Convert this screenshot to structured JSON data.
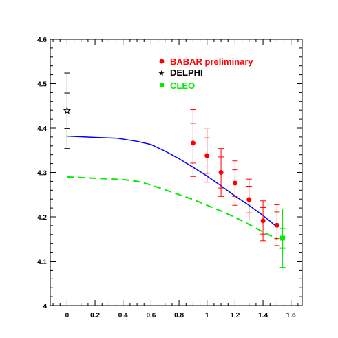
{
  "chart_data": {
    "type": "scatter",
    "title": "",
    "xlabel": "",
    "ylabel": "",
    "xlim": [
      -0.12,
      1.68
    ],
    "ylim": [
      4.0,
      4.6
    ],
    "x_ticks": [
      0,
      0.2,
      0.4,
      0.6,
      0.8,
      1,
      1.2,
      1.4,
      1.6
    ],
    "x_tick_labels": [
      "0",
      "0.2",
      "0.4",
      "0.6",
      "0.8",
      "1",
      "1.2",
      "1.4",
      "1.6"
    ],
    "y_ticks": [
      4.0,
      4.1,
      4.2,
      4.3,
      4.4,
      4.5,
      4.6
    ],
    "y_tick_labels": [
      "4",
      "4.1",
      "4.2",
      "4.3",
      "4.4",
      "4.5",
      "4.6"
    ],
    "grid": false,
    "legend_position": "top-right",
    "series": [
      {
        "name": "BABAR preliminary",
        "color": "#ff0000",
        "marker": "circle",
        "points": [
          {
            "x": 0.9,
            "y": 4.366,
            "err_stat": 0.045,
            "err_tot": 0.075
          },
          {
            "x": 1.0,
            "y": 4.338,
            "err_stat": 0.04,
            "err_tot": 0.06
          },
          {
            "x": 1.1,
            "y": 4.3,
            "err_stat": 0.035,
            "err_tot": 0.054
          },
          {
            "x": 1.2,
            "y": 4.276,
            "err_stat": 0.03,
            "err_tot": 0.05
          },
          {
            "x": 1.3,
            "y": 4.239,
            "err_stat": 0.03,
            "err_tot": 0.046
          },
          {
            "x": 1.4,
            "y": 4.191,
            "err_stat": 0.03,
            "err_tot": 0.045
          },
          {
            "x": 1.5,
            "y": 4.181,
            "err_stat": 0.03,
            "err_tot": 0.046
          }
        ]
      },
      {
        "name": "DELPHI",
        "color": "#000000",
        "marker": "star",
        "points": [
          {
            "x": 0.0,
            "y": 4.439,
            "err_stat": 0.04,
            "err_tot": 0.085
          }
        ]
      },
      {
        "name": "CLEO",
        "color": "#00ee00",
        "marker": "square",
        "points": [
          {
            "x": 1.54,
            "y": 4.152,
            "err_stat": 0.022,
            "err_tot": 0.066
          }
        ]
      }
    ],
    "curves": [
      {
        "color": "#0000ff",
        "style": "solid",
        "x": [
          0.0,
          0.2,
          0.36,
          0.5,
          0.6,
          0.7,
          0.8,
          0.9,
          1.0,
          1.1,
          1.2,
          1.3,
          1.4,
          1.5
        ],
        "y": [
          4.382,
          4.379,
          4.377,
          4.37,
          4.363,
          4.348,
          4.331,
          4.312,
          4.292,
          4.27,
          4.247,
          4.226,
          4.203,
          4.177
        ]
      },
      {
        "color": "#00ee00",
        "style": "dashed",
        "x": [
          0.0,
          0.2,
          0.4,
          0.5,
          0.6,
          0.7,
          0.8,
          0.9,
          1.0,
          1.1,
          1.2,
          1.3,
          1.4,
          1.5
        ],
        "y": [
          4.29,
          4.287,
          4.284,
          4.28,
          4.272,
          4.261,
          4.25,
          4.239,
          4.226,
          4.213,
          4.199,
          4.183,
          4.166,
          4.15
        ]
      }
    ]
  }
}
